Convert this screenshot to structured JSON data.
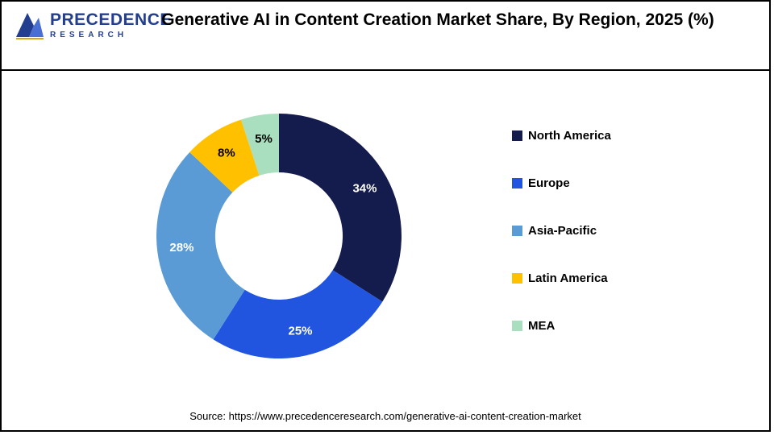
{
  "logo": {
    "title": "PRECEDENCE",
    "subtitle": "RESEARCH"
  },
  "header": {
    "title": "Generative AI in Content Creation Market Share, By Region, 2025 (%)"
  },
  "chart_data": {
    "type": "pie",
    "variant": "donut",
    "title": "Generative AI in Content Creation Market Share, By Region, 2025 (%)",
    "categories": [
      "North America",
      "Europe",
      "Asia-Pacific",
      "Latin America",
      "MEA"
    ],
    "values": [
      34,
      25,
      28,
      8,
      5
    ],
    "data_labels": [
      "34%",
      "25%",
      "28%",
      "8%",
      "5%"
    ],
    "colors": [
      "#141b4d",
      "#2155e0",
      "#5b9bd5",
      "#ffc000",
      "#a9dfbf"
    ],
    "label_colors": [
      "#ffffff",
      "#ffffff",
      "#ffffff",
      "#000000",
      "#000000"
    ],
    "start_angle_deg": 0,
    "direction": "clockwise",
    "inner_radius_pct": 52,
    "legend_position": "right",
    "grid": false
  },
  "footer": {
    "source": "Source: https://www.precedenceresearch.com/generative-ai-content-creation-market"
  }
}
